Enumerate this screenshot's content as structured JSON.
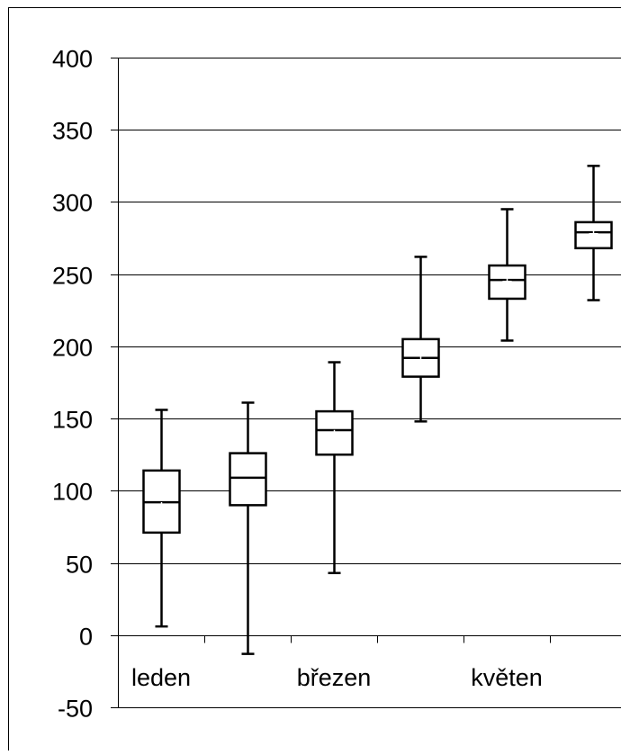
{
  "chart_data": {
    "type": "boxplot",
    "categories": [
      "leden",
      "",
      "březen",
      "",
      "květen",
      ""
    ],
    "series": [
      {
        "boxes": [
          {
            "min": 6,
            "q1": 71,
            "median": 92,
            "q3": 114,
            "max": 156,
            "mean": 89
          },
          {
            "min": -13,
            "q1": 90,
            "median": 109,
            "q3": 126,
            "max": 161,
            "mean": 104
          },
          {
            "min": 43,
            "q1": 125,
            "median": 142,
            "q3": 155,
            "max": 189,
            "mean": 139
          },
          {
            "min": 148,
            "q1": 179,
            "median": 192,
            "q3": 205,
            "max": 262,
            "mean": 194
          },
          {
            "min": 204,
            "q1": 233,
            "median": 246,
            "q3": 256,
            "max": 295,
            "mean": 245
          },
          {
            "min": 232,
            "q1": 268,
            "median": 279,
            "q3": 286,
            "max": 325,
            "mean": 278
          }
        ]
      }
    ],
    "yticks": [
      "400",
      "350",
      "300",
      "250",
      "200",
      "150",
      "100",
      "50",
      "0",
      "-50"
    ],
    "ylim": [
      -50,
      400
    ],
    "ytick_step": 50,
    "grid": true,
    "legend": "none",
    "colors": {
      "box": "#000000",
      "mean_marker": "#ffffff",
      "grid": "#000000"
    }
  }
}
